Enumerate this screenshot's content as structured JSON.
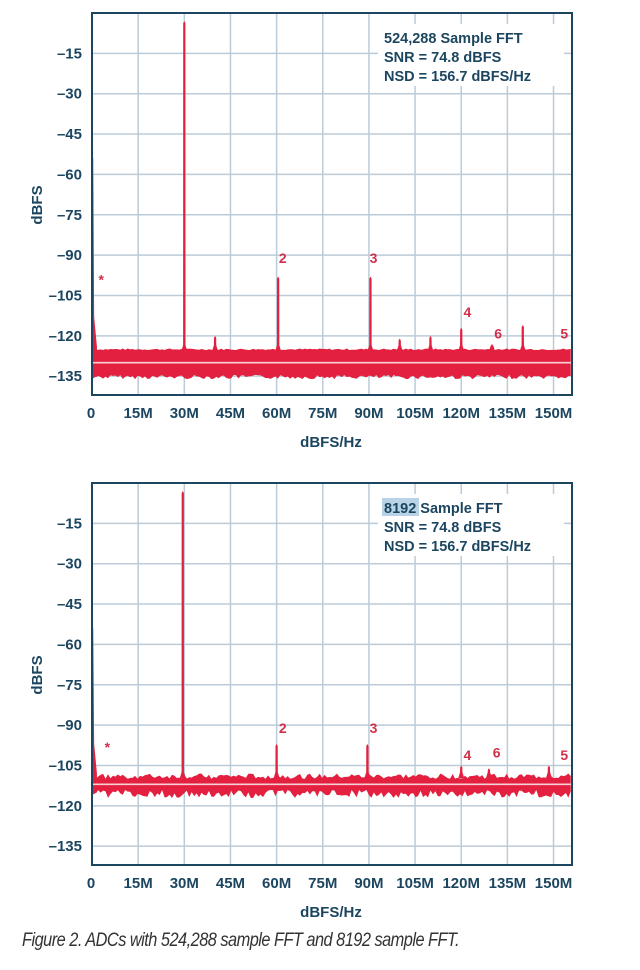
{
  "colors": {
    "trace": "#e3203f",
    "axis": "#1c4660",
    "grid": "#bccbd8",
    "floor_line": "#f5d0d6",
    "highlight": "#b9d3e6"
  },
  "caption": "Figure 2. ADCs with 524,288 sample FFT and 8192 sample FFT.",
  "chart_data": [
    {
      "type": "line",
      "xlabel": "dBFS/Hz",
      "ylabel": "dBFS",
      "xlim": [
        0,
        156
      ],
      "ylim": [
        -142,
        0
      ],
      "grid": true,
      "x_ticks": [
        0,
        15,
        30,
        45,
        60,
        75,
        90,
        105,
        120,
        135,
        150
      ],
      "x_tick_labels": [
        "0",
        "15M",
        "30M",
        "45M",
        "60M",
        "75M",
        "90M",
        "105M",
        "120M",
        "135M",
        "150M"
      ],
      "y_ticks": [
        -15,
        -30,
        -45,
        -60,
        -75,
        -90,
        -105,
        -120,
        -135
      ],
      "y_tick_labels": [
        "–15",
        "–30",
        "–45",
        "–60",
        "–75",
        "–90",
        "–105",
        "–120",
        "–135"
      ],
      "annotation": {
        "highlight": "",
        "line1": "524,288 Sample FFT",
        "line2": "SNR = 74.8 dBFS",
        "line3": "NSD = 156.7 dBFS/Hz"
      },
      "noise_floor": {
        "upper": -125,
        "lower": -135,
        "mean": -130
      },
      "dc": {
        "x": 0,
        "y": -52
      },
      "spurs": [
        {
          "x": 30,
          "y": -3
        },
        {
          "x": 40,
          "y": -120
        },
        {
          "x": 60.5,
          "y": -98
        },
        {
          "x": 90.5,
          "y": -98
        },
        {
          "x": 100,
          "y": -121
        },
        {
          "x": 110,
          "y": -120
        },
        {
          "x": 120,
          "y": -117
        },
        {
          "x": 130,
          "y": -123
        },
        {
          "x": 140,
          "y": -116
        }
      ],
      "labels": [
        {
          "text": "*",
          "x": 3,
          "y": -101
        },
        {
          "text": "2",
          "x": 62,
          "y": -93
        },
        {
          "text": "3",
          "x": 91.5,
          "y": -93
        },
        {
          "text": "4",
          "x": 122,
          "y": -113
        },
        {
          "text": "6",
          "x": 132,
          "y": -121
        },
        {
          "text": "5",
          "x": 153.5,
          "y": -121
        }
      ]
    },
    {
      "type": "line",
      "xlabel": "dBFS/Hz",
      "ylabel": "dBFS",
      "xlim": [
        0,
        156
      ],
      "ylim": [
        -142,
        0
      ],
      "grid": true,
      "x_ticks": [
        0,
        15,
        30,
        45,
        60,
        75,
        90,
        105,
        120,
        135,
        150
      ],
      "x_tick_labels": [
        "0",
        "15M",
        "30M",
        "45M",
        "60M",
        "75M",
        "90M",
        "105M",
        "120M",
        "135M",
        "150M"
      ],
      "y_ticks": [
        -15,
        -30,
        -45,
        -60,
        -75,
        -90,
        -105,
        -120,
        -135
      ],
      "y_tick_labels": [
        "–15",
        "–30",
        "–45",
        "–60",
        "–75",
        "–90",
        "–105",
        "–120",
        "–135"
      ],
      "annotation": {
        "highlight": "8192",
        "line1": " Sample FFT",
        "line2": "SNR = 74.8 dBFS",
        "line3": "NSD = 156.7 dBFS/Hz"
      },
      "noise_floor": {
        "upper": -109,
        "lower": -115,
        "mean": -112
      },
      "dc": {
        "x": 0,
        "y": -52
      },
      "spurs": [
        {
          "x": 29.5,
          "y": -3
        },
        {
          "x": 60,
          "y": -97
        },
        {
          "x": 89.5,
          "y": -97
        },
        {
          "x": 120,
          "y": -105
        },
        {
          "x": 129,
          "y": -106
        },
        {
          "x": 148.5,
          "y": -105
        }
      ],
      "labels": [
        {
          "text": "*",
          "x": 5,
          "y": -100
        },
        {
          "text": "2",
          "x": 62,
          "y": -93
        },
        {
          "text": "3",
          "x": 91.5,
          "y": -93
        },
        {
          "text": "4",
          "x": 122,
          "y": -103
        },
        {
          "text": "6",
          "x": 131.5,
          "y": -102
        },
        {
          "text": "5",
          "x": 153.5,
          "y": -103
        }
      ]
    }
  ]
}
